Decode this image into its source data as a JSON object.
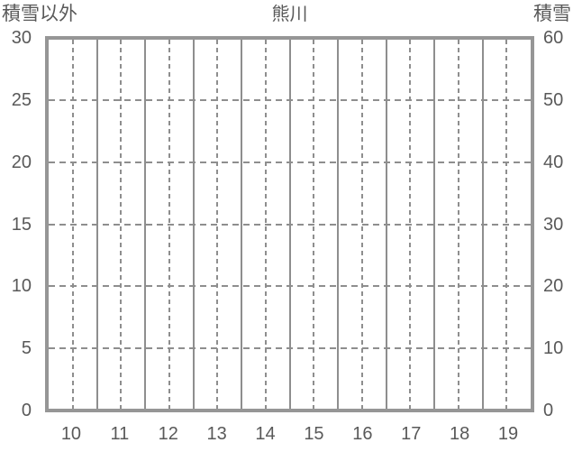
{
  "chart_data": {
    "type": "line",
    "title": "熊川",
    "series": [],
    "x_axis": {
      "categories": [
        "10",
        "11",
        "12",
        "13",
        "14",
        "15",
        "16",
        "17",
        "18",
        "19"
      ]
    },
    "left_axis": {
      "label": "積雪以外",
      "min": 0,
      "max": 30,
      "ticks": [
        0,
        5,
        10,
        15,
        20,
        25,
        30
      ]
    },
    "right_axis": {
      "label": "積雪",
      "min": 0,
      "max": 60,
      "ticks": [
        0,
        10,
        20,
        30,
        40,
        50,
        60
      ]
    },
    "layout": {
      "grid": "on",
      "legend": "none",
      "vertical_solid_lines": "category boundaries",
      "vertical_dashed_lines": "category centers",
      "horizontal_dashed_lines": "at interior y ticks"
    }
  },
  "colors": {
    "background": "#ffffff",
    "text": "#595959",
    "plot_border": "#969696",
    "gridline": "#8e8e8e"
  }
}
